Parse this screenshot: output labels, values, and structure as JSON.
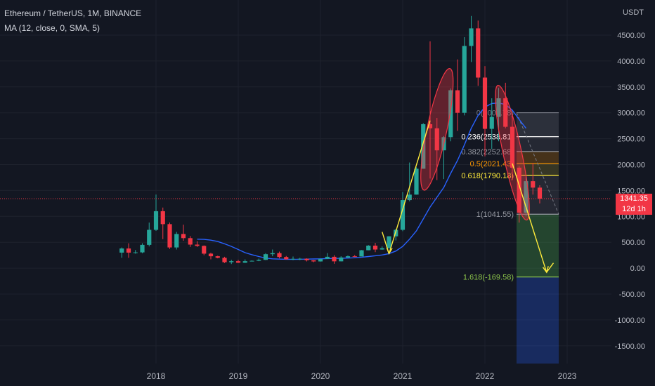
{
  "header": {
    "symbol_line": "Ethereum / TetherUS, 1M, BINANCE",
    "indicator_line": "MA (12, close, 0, SMA, 5)"
  },
  "axis_unit": "USDT",
  "last_price": {
    "value": "1341.35",
    "countdown": "12d 1h"
  },
  "colors": {
    "background": "#131722",
    "up": "#26a69a",
    "down": "#f23645",
    "ma": "#2962ff",
    "arrow": "#ffeb3b",
    "ellipse": "#f23645"
  },
  "chart_data": {
    "type": "candlestick",
    "title": "Ethereum / TetherUS, 1M, BINANCE",
    "ylabel": "USDT",
    "ylim": [
      -1750,
      4900
    ],
    "x_ticks": [
      "2018",
      "2019",
      "2020",
      "2021",
      "2022",
      "2023"
    ],
    "y_ticks": [
      "4500.00",
      "4000.00",
      "3500.00",
      "3000.00",
      "2500.00",
      "2000.00",
      "1500.00",
      "1000.00",
      "500.00",
      "0.00",
      "-500.00",
      "-1000.00",
      "-1500.00"
    ],
    "grid": true,
    "candles": [
      {
        "date": "2017-08",
        "o": 300,
        "h": 400,
        "l": 200,
        "c": 380
      },
      {
        "date": "2017-09",
        "o": 380,
        "h": 480,
        "l": 200,
        "c": 300
      },
      {
        "date": "2017-10",
        "o": 300,
        "h": 350,
        "l": 280,
        "c": 305
      },
      {
        "date": "2017-11",
        "o": 305,
        "h": 480,
        "l": 290,
        "c": 450
      },
      {
        "date": "2017-12",
        "o": 450,
        "h": 880,
        "l": 420,
        "c": 740
      },
      {
        "date": "2018-01",
        "o": 740,
        "h": 1420,
        "l": 720,
        "c": 1100
      },
      {
        "date": "2018-02",
        "o": 1100,
        "h": 1170,
        "l": 560,
        "c": 850
      },
      {
        "date": "2018-03",
        "o": 850,
        "h": 880,
        "l": 370,
        "c": 400
      },
      {
        "date": "2018-04",
        "o": 400,
        "h": 700,
        "l": 360,
        "c": 660
      },
      {
        "date": "2018-05",
        "o": 660,
        "h": 840,
        "l": 530,
        "c": 580
      },
      {
        "date": "2018-06",
        "o": 580,
        "h": 620,
        "l": 410,
        "c": 455
      },
      {
        "date": "2018-07",
        "o": 455,
        "h": 520,
        "l": 410,
        "c": 430
      },
      {
        "date": "2018-08",
        "o": 430,
        "h": 440,
        "l": 250,
        "c": 280
      },
      {
        "date": "2018-09",
        "o": 280,
        "h": 300,
        "l": 170,
        "c": 230
      },
      {
        "date": "2018-10",
        "o": 230,
        "h": 240,
        "l": 190,
        "c": 200
      },
      {
        "date": "2018-11",
        "o": 200,
        "h": 220,
        "l": 100,
        "c": 115
      },
      {
        "date": "2018-12",
        "o": 115,
        "h": 160,
        "l": 80,
        "c": 135
      },
      {
        "date": "2019-01",
        "o": 135,
        "h": 160,
        "l": 100,
        "c": 105
      },
      {
        "date": "2019-02",
        "o": 105,
        "h": 170,
        "l": 100,
        "c": 135
      },
      {
        "date": "2019-03",
        "o": 135,
        "h": 150,
        "l": 130,
        "c": 142
      },
      {
        "date": "2019-04",
        "o": 142,
        "h": 185,
        "l": 135,
        "c": 160
      },
      {
        "date": "2019-05",
        "o": 160,
        "h": 290,
        "l": 155,
        "c": 270
      },
      {
        "date": "2019-06",
        "o": 270,
        "h": 360,
        "l": 230,
        "c": 290
      },
      {
        "date": "2019-07",
        "o": 290,
        "h": 320,
        "l": 190,
        "c": 215
      },
      {
        "date": "2019-08",
        "o": 215,
        "h": 235,
        "l": 165,
        "c": 172
      },
      {
        "date": "2019-09",
        "o": 172,
        "h": 225,
        "l": 155,
        "c": 180
      },
      {
        "date": "2019-10",
        "o": 180,
        "h": 200,
        "l": 155,
        "c": 182
      },
      {
        "date": "2019-11",
        "o": 182,
        "h": 190,
        "l": 130,
        "c": 152
      },
      {
        "date": "2019-12",
        "o": 152,
        "h": 155,
        "l": 115,
        "c": 130
      },
      {
        "date": "2020-01",
        "o": 130,
        "h": 185,
        "l": 127,
        "c": 180
      },
      {
        "date": "2020-02",
        "o": 180,
        "h": 290,
        "l": 180,
        "c": 220
      },
      {
        "date": "2020-03",
        "o": 220,
        "h": 250,
        "l": 85,
        "c": 132
      },
      {
        "date": "2020-04",
        "o": 132,
        "h": 230,
        "l": 130,
        "c": 206
      },
      {
        "date": "2020-05",
        "o": 206,
        "h": 245,
        "l": 195,
        "c": 230
      },
      {
        "date": "2020-06",
        "o": 230,
        "h": 255,
        "l": 215,
        "c": 225
      },
      {
        "date": "2020-07",
        "o": 225,
        "h": 350,
        "l": 225,
        "c": 346
      },
      {
        "date": "2020-08",
        "o": 346,
        "h": 445,
        "l": 345,
        "c": 435
      },
      {
        "date": "2020-09",
        "o": 435,
        "h": 490,
        "l": 310,
        "c": 360
      },
      {
        "date": "2020-10",
        "o": 360,
        "h": 420,
        "l": 355,
        "c": 386
      },
      {
        "date": "2020-11",
        "o": 386,
        "h": 620,
        "l": 375,
        "c": 615
      },
      {
        "date": "2020-12",
        "o": 615,
        "h": 760,
        "l": 535,
        "c": 740
      },
      {
        "date": "2021-01",
        "o": 740,
        "h": 1470,
        "l": 715,
        "c": 1315
      },
      {
        "date": "2021-02",
        "o": 1315,
        "h": 2040,
        "l": 1290,
        "c": 1420
      },
      {
        "date": "2021-03",
        "o": 1420,
        "h": 1950,
        "l": 1420,
        "c": 1920
      },
      {
        "date": "2021-04",
        "o": 1920,
        "h": 2800,
        "l": 1920,
        "c": 2780
      },
      {
        "date": "2021-05",
        "o": 2780,
        "h": 4380,
        "l": 1730,
        "c": 2700
      },
      {
        "date": "2021-06",
        "o": 2700,
        "h": 2900,
        "l": 1700,
        "c": 2275
      },
      {
        "date": "2021-07",
        "o": 2275,
        "h": 2550,
        "l": 1720,
        "c": 2530
      },
      {
        "date": "2021-08",
        "o": 2530,
        "h": 3470,
        "l": 2450,
        "c": 3435
      },
      {
        "date": "2021-09",
        "o": 3435,
        "h": 4030,
        "l": 2650,
        "c": 3000
      },
      {
        "date": "2021-10",
        "o": 3000,
        "h": 4460,
        "l": 2950,
        "c": 4290
      },
      {
        "date": "2021-11",
        "o": 4290,
        "h": 4870,
        "l": 3980,
        "c": 4630
      },
      {
        "date": "2021-12",
        "o": 4630,
        "h": 4780,
        "l": 3520,
        "c": 3680
      },
      {
        "date": "2022-01",
        "o": 3680,
        "h": 3900,
        "l": 2160,
        "c": 2690
      },
      {
        "date": "2022-02",
        "o": 2690,
        "h": 3280,
        "l": 2300,
        "c": 2920
      },
      {
        "date": "2022-03",
        "o": 2920,
        "h": 3480,
        "l": 2450,
        "c": 3280
      },
      {
        "date": "2022-04",
        "o": 3280,
        "h": 3580,
        "l": 2700,
        "c": 2730
      },
      {
        "date": "2022-05",
        "o": 2730,
        "h": 2960,
        "l": 1700,
        "c": 1940
      },
      {
        "date": "2022-06",
        "o": 1940,
        "h": 1970,
        "l": 880,
        "c": 1070
      },
      {
        "date": "2022-07",
        "o": 1070,
        "h": 1780,
        "l": 1000,
        "c": 1680
      },
      {
        "date": "2022-08",
        "o": 1680,
        "h": 2030,
        "l": 1420,
        "c": 1555
      },
      {
        "date": "2022-09",
        "o": 1555,
        "h": 1600,
        "l": 1250,
        "c": 1341.35
      }
    ],
    "ma_series": {
      "name": "MA (12, close, 0, SMA, 5)",
      "points": [
        {
          "date": "2018-07",
          "v": 560
        },
        {
          "date": "2018-08",
          "v": 555
        },
        {
          "date": "2018-09",
          "v": 540
        },
        {
          "date": "2018-10",
          "v": 515
        },
        {
          "date": "2018-11",
          "v": 470
        },
        {
          "date": "2018-12",
          "v": 420
        },
        {
          "date": "2019-01",
          "v": 360
        },
        {
          "date": "2019-02",
          "v": 300
        },
        {
          "date": "2019-03",
          "v": 260
        },
        {
          "date": "2019-04",
          "v": 225
        },
        {
          "date": "2019-05",
          "v": 195
        },
        {
          "date": "2019-06",
          "v": 180
        },
        {
          "date": "2019-07",
          "v": 175
        },
        {
          "date": "2019-08",
          "v": 172
        },
        {
          "date": "2019-09",
          "v": 170
        },
        {
          "date": "2019-10",
          "v": 172
        },
        {
          "date": "2019-11",
          "v": 175
        },
        {
          "date": "2019-12",
          "v": 178
        },
        {
          "date": "2020-01",
          "v": 180
        },
        {
          "date": "2020-02",
          "v": 185
        },
        {
          "date": "2020-03",
          "v": 188
        },
        {
          "date": "2020-04",
          "v": 190
        },
        {
          "date": "2020-05",
          "v": 195
        },
        {
          "date": "2020-06",
          "v": 200
        },
        {
          "date": "2020-07",
          "v": 210
        },
        {
          "date": "2020-08",
          "v": 225
        },
        {
          "date": "2020-09",
          "v": 240
        },
        {
          "date": "2020-10",
          "v": 255
        },
        {
          "date": "2020-11",
          "v": 280
        },
        {
          "date": "2020-12",
          "v": 330
        },
        {
          "date": "2021-01",
          "v": 420
        },
        {
          "date": "2021-02",
          "v": 560
        },
        {
          "date": "2021-03",
          "v": 720
        },
        {
          "date": "2021-04",
          "v": 950
        },
        {
          "date": "2021-05",
          "v": 1180
        },
        {
          "date": "2021-06",
          "v": 1370
        },
        {
          "date": "2021-07",
          "v": 1560
        },
        {
          "date": "2021-08",
          "v": 1830
        },
        {
          "date": "2021-09",
          "v": 2080
        },
        {
          "date": "2021-10",
          "v": 2380
        },
        {
          "date": "2021-11",
          "v": 2700
        },
        {
          "date": "2021-12",
          "v": 2950
        },
        {
          "date": "2022-01",
          "v": 3110
        },
        {
          "date": "2022-02",
          "v": 3180
        },
        {
          "date": "2022-03",
          "v": 3190
        },
        {
          "date": "2022-04",
          "v": 3160
        },
        {
          "date": "2022-05",
          "v": 3050
        },
        {
          "date": "2022-06",
          "v": 2870
        },
        {
          "date": "2022-07",
          "v": 2700
        }
      ]
    },
    "fib_levels": [
      {
        "label": "0(3001.78)",
        "value": 3001.78,
        "color": "#787b86"
      },
      {
        "label": "0.236(2538.81)",
        "value": 2538.81,
        "color": "#ffffff"
      },
      {
        "label": "0.382(2252.68)",
        "value": 2252.68,
        "color": "#9598a1"
      },
      {
        "label": "0.5(2021.43)",
        "value": 2021.43,
        "color": "#ff9800"
      },
      {
        "label": "0.618(1790.18)",
        "value": 1790.18,
        "color": "#ffeb3b"
      },
      {
        "label": "1(1041.55)",
        "value": 1041.55,
        "color": "#9598a1"
      },
      {
        "label": "1.618(-169.58)",
        "value": -169.58,
        "color": "#8bc34a"
      }
    ],
    "annotations": {
      "arrows": [
        {
          "from": {
            "date": "2020-10",
            "v": 700
          },
          "to": {
            "date": "2020-11",
            "v": 280
          }
        },
        {
          "from": {
            "date": "2020-11",
            "v": 280
          },
          "to": {
            "date": "2021-05",
            "v": 2850
          }
        },
        {
          "from": {
            "date": "2022-05",
            "v": 2020
          },
          "to": {
            "date": "2022-10",
            "v": -80
          }
        },
        {
          "from": {
            "date": "2022-10",
            "v": -80
          },
          "to": {
            "date": "2022-11",
            "v": 100
          }
        }
      ],
      "ellipses": [
        {
          "center": {
            "date": "2021-06",
            "v": 2680
          },
          "rx_months": 1.45,
          "ry_value": 1200,
          "angle": 12
        },
        {
          "center": {
            "date": "2022-05",
            "v": 2230
          },
          "rx_months": 1.35,
          "ry_value": 1330,
          "angle": -12
        }
      ]
    },
    "last_price": 1341.35
  }
}
